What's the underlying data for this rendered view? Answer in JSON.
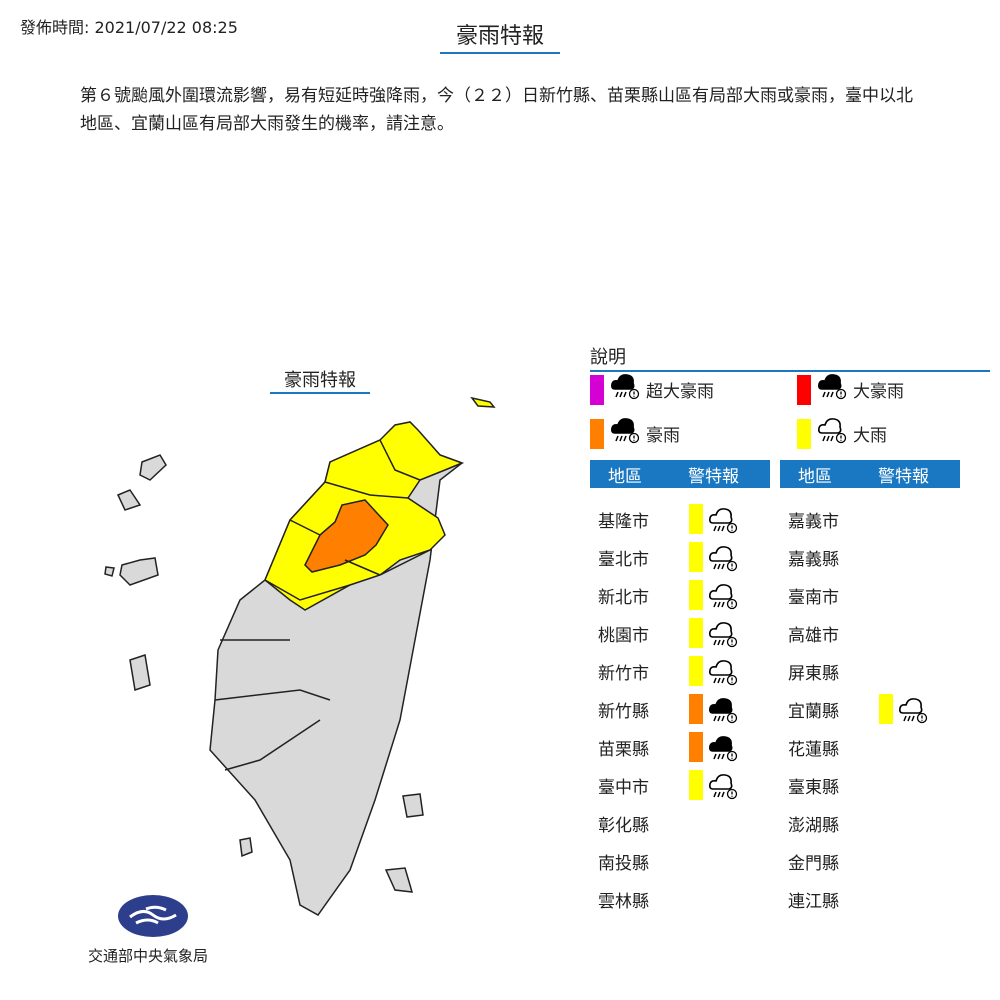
{
  "header": {
    "issued": "發佈時間: 2021/07/22 08:25",
    "title": "豪雨特報"
  },
  "description": "第６號颱風外圍環流影響，易有短延時強降雨，今（２２）日新竹縣、苗栗縣山區有局部大雨或豪雨，臺中以北地區、宜蘭山區有局部大雨發生的機率，請注意。",
  "map": {
    "title": "豪雨特報"
  },
  "legend": {
    "title": "說明",
    "items": [
      {
        "label": "超大豪雨",
        "color": "#d400d4",
        "icon": "torrential-rain-icon"
      },
      {
        "label": "大豪雨",
        "color": "#ff0000",
        "icon": "torrential-rain-icon"
      },
      {
        "label": "豪雨",
        "color": "#ff8000",
        "icon": "heavy-rain-filled-icon"
      },
      {
        "label": "大雨",
        "color": "#ffff00",
        "icon": "rain-outline-icon"
      }
    ]
  },
  "table": {
    "col_region": "地區",
    "col_warning": "警特報",
    "left": [
      {
        "name": "基隆市",
        "level": "大雨"
      },
      {
        "name": "臺北市",
        "level": "大雨"
      },
      {
        "name": "新北市",
        "level": "大雨"
      },
      {
        "name": "桃園市",
        "level": "大雨"
      },
      {
        "name": "新竹市",
        "level": "大雨"
      },
      {
        "name": "新竹縣",
        "level": "豪雨"
      },
      {
        "name": "苗栗縣",
        "level": "豪雨"
      },
      {
        "name": "臺中市",
        "level": "大雨"
      },
      {
        "name": "彰化縣",
        "level": ""
      },
      {
        "name": "南投縣",
        "level": ""
      },
      {
        "name": "雲林縣",
        "level": ""
      }
    ],
    "right": [
      {
        "name": "嘉義市",
        "level": ""
      },
      {
        "name": "嘉義縣",
        "level": ""
      },
      {
        "name": "臺南市",
        "level": ""
      },
      {
        "name": "高雄市",
        "level": ""
      },
      {
        "name": "屏東縣",
        "level": ""
      },
      {
        "name": "宜蘭縣",
        "level": "大雨"
      },
      {
        "name": "花蓮縣",
        "level": ""
      },
      {
        "name": "臺東縣",
        "level": ""
      },
      {
        "name": "澎湖縣",
        "level": ""
      },
      {
        "name": "金門縣",
        "level": ""
      },
      {
        "name": "連江縣",
        "level": ""
      }
    ]
  },
  "colors": {
    "accent": "#1a78c2",
    "none": "#d9d9d9",
    "大雨": "#ffff00",
    "豪雨": "#ff8000"
  },
  "footer": {
    "agency": "交通部中央氣象局"
  }
}
